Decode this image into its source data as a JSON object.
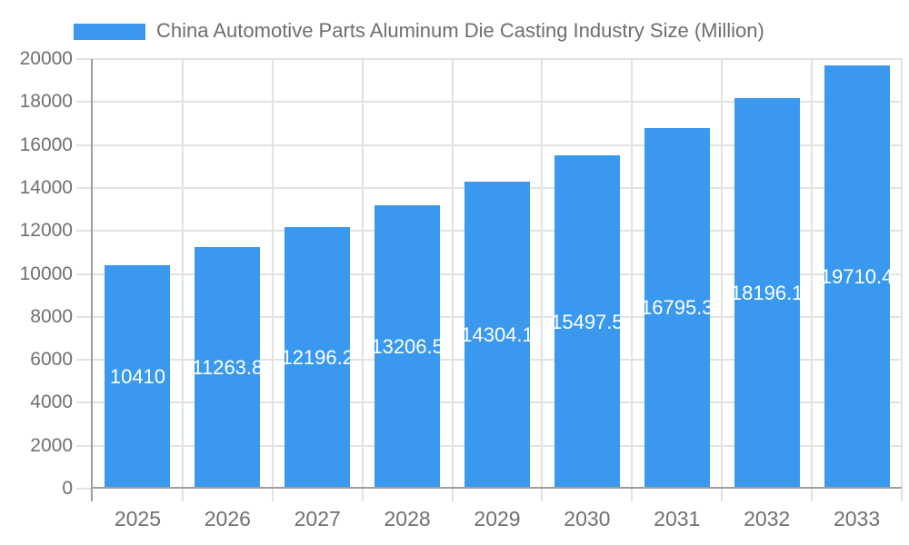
{
  "chart_data": {
    "type": "bar",
    "title": "China Automotive Parts Aluminum Die Casting Industry Size (Million)",
    "legend_position": "top",
    "categories": [
      "2025",
      "2026",
      "2027",
      "2028",
      "2029",
      "2030",
      "2031",
      "2032",
      "2033"
    ],
    "values": [
      10410,
      11263.8,
      12196.2,
      13206.5,
      14304.1,
      15497.5,
      16795.3,
      18196.1,
      19710.4
    ],
    "bar_labels": [
      "10410",
      "11263.8",
      "12196.2",
      "13206.5",
      "14304.1",
      "15497.5",
      "16795.3",
      "18196.1",
      "19710.4"
    ],
    "xlabel": "",
    "ylabel": "",
    "ylim": [
      0,
      20000
    ],
    "ytick_step": 2000,
    "ytick_labels": [
      "0",
      "2000",
      "4000",
      "6000",
      "8000",
      "10000",
      "12000",
      "14000",
      "16000",
      "18000",
      "20000"
    ],
    "grid": true,
    "colors": {
      "bar": "#3A99EE",
      "bar_label_text": "#FFFFFF",
      "axis_text": "#707070",
      "legend_text": "#6E6E6E",
      "grid_line": "#E2E2E2",
      "axis_line": "#9E9E9E",
      "background": "#FFFFFF"
    }
  }
}
